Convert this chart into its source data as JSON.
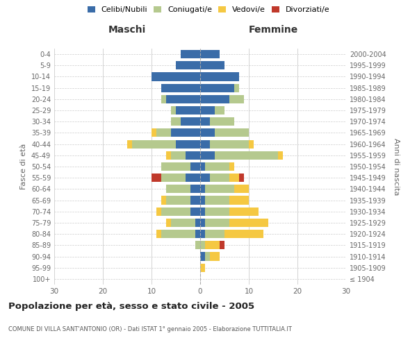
{
  "age_groups": [
    "100+",
    "95-99",
    "90-94",
    "85-89",
    "80-84",
    "75-79",
    "70-74",
    "65-69",
    "60-64",
    "55-59",
    "50-54",
    "45-49",
    "40-44",
    "35-39",
    "30-34",
    "25-29",
    "20-24",
    "15-19",
    "10-14",
    "5-9",
    "0-4"
  ],
  "birth_years": [
    "≤ 1904",
    "1905-1909",
    "1910-1914",
    "1915-1919",
    "1920-1924",
    "1925-1929",
    "1930-1934",
    "1935-1939",
    "1940-1944",
    "1945-1949",
    "1950-1954",
    "1955-1959",
    "1960-1964",
    "1965-1969",
    "1970-1974",
    "1975-1979",
    "1980-1984",
    "1985-1989",
    "1990-1994",
    "1995-1999",
    "2000-2004"
  ],
  "maschi": {
    "celibi": [
      0,
      0,
      0,
      0,
      1,
      1,
      2,
      2,
      2,
      3,
      2,
      3,
      5,
      6,
      4,
      5,
      7,
      8,
      10,
      5,
      4
    ],
    "coniugati": [
      0,
      0,
      0,
      1,
      7,
      5,
      6,
      5,
      5,
      5,
      6,
      3,
      9,
      3,
      2,
      1,
      1,
      0,
      0,
      0,
      0
    ],
    "vedovi": [
      0,
      0,
      0,
      0,
      1,
      1,
      1,
      1,
      0,
      0,
      0,
      1,
      1,
      1,
      0,
      0,
      0,
      0,
      0,
      0,
      0
    ],
    "divorziati": [
      0,
      0,
      0,
      0,
      0,
      0,
      0,
      0,
      0,
      2,
      0,
      0,
      0,
      0,
      0,
      0,
      0,
      0,
      0,
      0,
      0
    ]
  },
  "femmine": {
    "nubili": [
      0,
      0,
      1,
      0,
      1,
      1,
      1,
      1,
      1,
      2,
      1,
      3,
      2,
      3,
      2,
      3,
      6,
      7,
      8,
      5,
      4
    ],
    "coniugate": [
      0,
      0,
      1,
      1,
      4,
      5,
      5,
      5,
      6,
      4,
      5,
      13,
      8,
      7,
      5,
      2,
      3,
      1,
      0,
      0,
      0
    ],
    "vedove": [
      0,
      1,
      2,
      3,
      8,
      8,
      6,
      4,
      3,
      2,
      1,
      1,
      1,
      0,
      0,
      0,
      0,
      0,
      0,
      0,
      0
    ],
    "divorziate": [
      0,
      0,
      0,
      1,
      0,
      0,
      0,
      0,
      0,
      1,
      0,
      0,
      0,
      0,
      0,
      0,
      0,
      0,
      0,
      0,
      0
    ]
  },
  "colors": {
    "celibi_nubili": "#3a6ca8",
    "coniugati": "#b5c98e",
    "vedovi": "#f5c842",
    "divorziati": "#c0392b"
  },
  "title": "Popolazione per età, sesso e stato civile - 2005",
  "subtitle": "COMUNE DI VILLA SANT'ANTONIO (OR) - Dati ISTAT 1° gennaio 2005 - Elaborazione TUTTITALIA.IT",
  "xlabel_left": "Maschi",
  "xlabel_right": "Femmine",
  "ylabel_left": "Fasce di età",
  "ylabel_right": "Anni di nascita",
  "xlim": 30,
  "background_color": "#ffffff",
  "grid_color": "#cccccc",
  "legend_labels": [
    "Celibi/Nubili",
    "Coniugati/e",
    "Vedovi/e",
    "Divorziati/e"
  ]
}
